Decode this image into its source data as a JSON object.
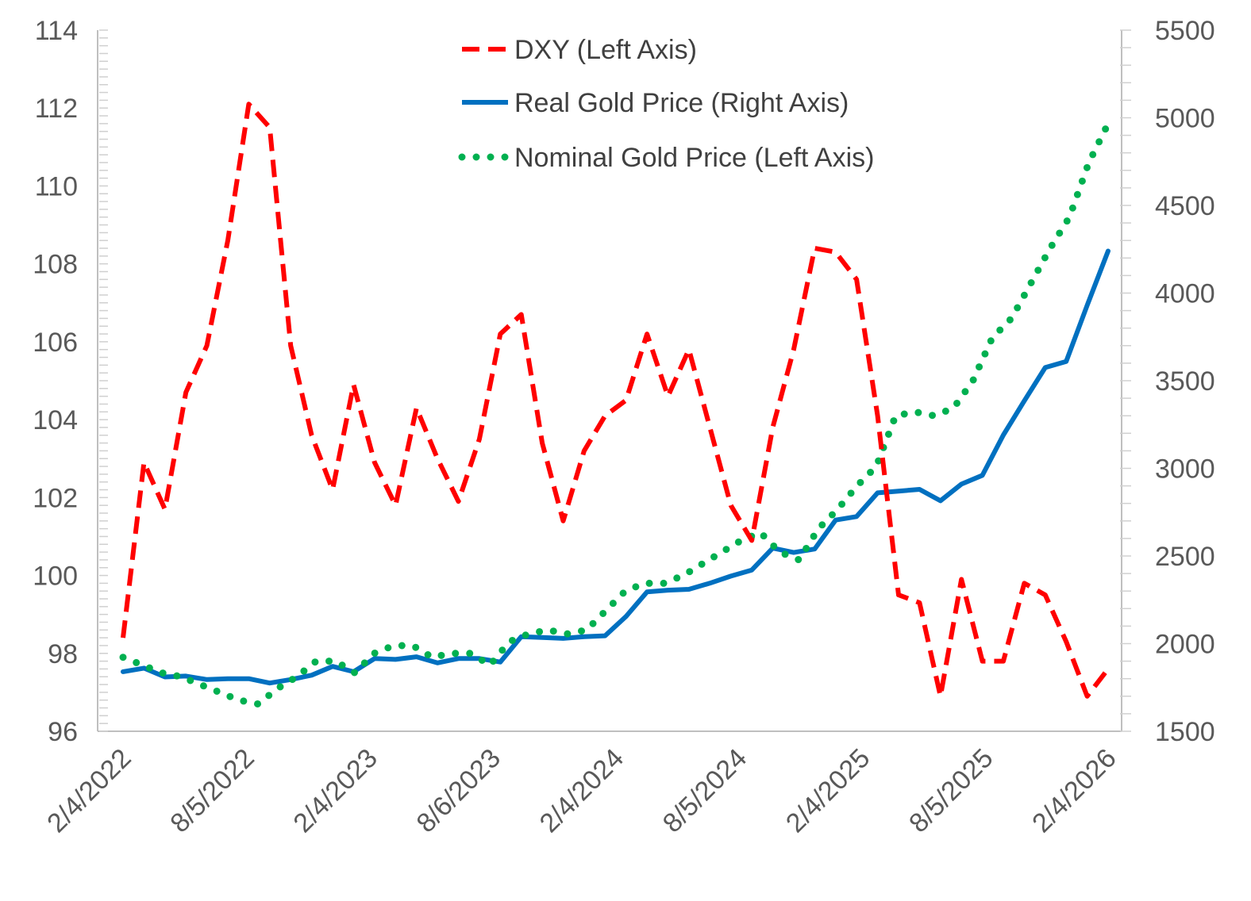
{
  "chart_data": {
    "type": "line",
    "title": "",
    "xlabel": "",
    "ylabel_left": "",
    "ylabel_right": "",
    "x_tick_labels": [
      "2/4/2022",
      "8/5/2022",
      "2/4/2023",
      "8/6/2023",
      "2/4/2024",
      "8/5/2024",
      "2/4/2025",
      "8/5/2025",
      "2/4/2026"
    ],
    "left_axis": {
      "min": 96,
      "max": 114,
      "step": 2,
      "ticks": [
        "96",
        "98",
        "100",
        "102",
        "104",
        "106",
        "108",
        "110",
        "112",
        "114"
      ]
    },
    "right_axis": {
      "min": 1500,
      "max": 5500,
      "step": 500,
      "ticks": [
        "1500",
        "2000",
        "2500",
        "3000",
        "3500",
        "4000",
        "4500",
        "5000",
        "5500"
      ]
    },
    "legend": {
      "position": "top-center",
      "dxy": "DXY (Left Axis)",
      "real_gold": "Real Gold Price (Right Axis)",
      "nominal_gold": "Nominal Gold Price (Left Axis)"
    },
    "series": [
      {
        "name": "DXY (Left Axis)",
        "axis": "left",
        "color": "#ff0000",
        "style": "dashed",
        "values": [
          98.4,
          102.9,
          101.7,
          104.7,
          105.9,
          108.6,
          112.1,
          111.5,
          105.9,
          103.6,
          102.2,
          104.9,
          102.9,
          101.8,
          104.3,
          103.0,
          101.9,
          103.5,
          106.2,
          106.7,
          103.4,
          101.4,
          103.2,
          104.1,
          104.5,
          106.2,
          104.6,
          105.8,
          103.8,
          101.8,
          100.9,
          103.8,
          105.8,
          108.4,
          108.3,
          107.6,
          104.1,
          99.5,
          99.3,
          96.9,
          99.9,
          97.8,
          97.8,
          99.8,
          99.5,
          98.3,
          96.9,
          97.6
        ]
      },
      {
        "name": "Real Gold Price (Right Axis)",
        "axis": "right",
        "color": "#0070c0",
        "style": "solid",
        "values": [
          1840,
          1860,
          1810,
          1815,
          1795,
          1800,
          1800,
          1775,
          1795,
          1820,
          1870,
          1840,
          1915,
          1910,
          1925,
          1890,
          1915,
          1915,
          1895,
          2040,
          2035,
          2030,
          2040,
          2045,
          2155,
          2295,
          2305,
          2310,
          2345,
          2385,
          2420,
          2545,
          2520,
          2540,
          2705,
          2725,
          2860,
          2870,
          2880,
          2815,
          2910,
          2960,
          3190,
          3385,
          3575,
          3610,
          3930,
          4240
        ]
      },
      {
        "name": "Nominal Gold Price (Left Axis)",
        "axis": "left",
        "color": "#00b050",
        "style": "dotted",
        "values": [
          97.9,
          97.7,
          97.5,
          97.4,
          97.2,
          97.0,
          96.8,
          96.7,
          97.1,
          97.4,
          97.8,
          97.8,
          97.5,
          98.0,
          98.2,
          98.2,
          97.9,
          98.0,
          98.0,
          97.7,
          98.3,
          98.5,
          98.6,
          98.5,
          98.6,
          99.1,
          99.6,
          99.8,
          99.8,
          100.0,
          100.3,
          100.6,
          100.9,
          101.1,
          100.6,
          100.4,
          101.2,
          101.7,
          102.3,
          102.8,
          104.1,
          104.2,
          104.1,
          104.3,
          105.0,
          106.1,
          106.6,
          107.5,
          108.4,
          109.2,
          110.6,
          111.6
        ]
      }
    ]
  }
}
